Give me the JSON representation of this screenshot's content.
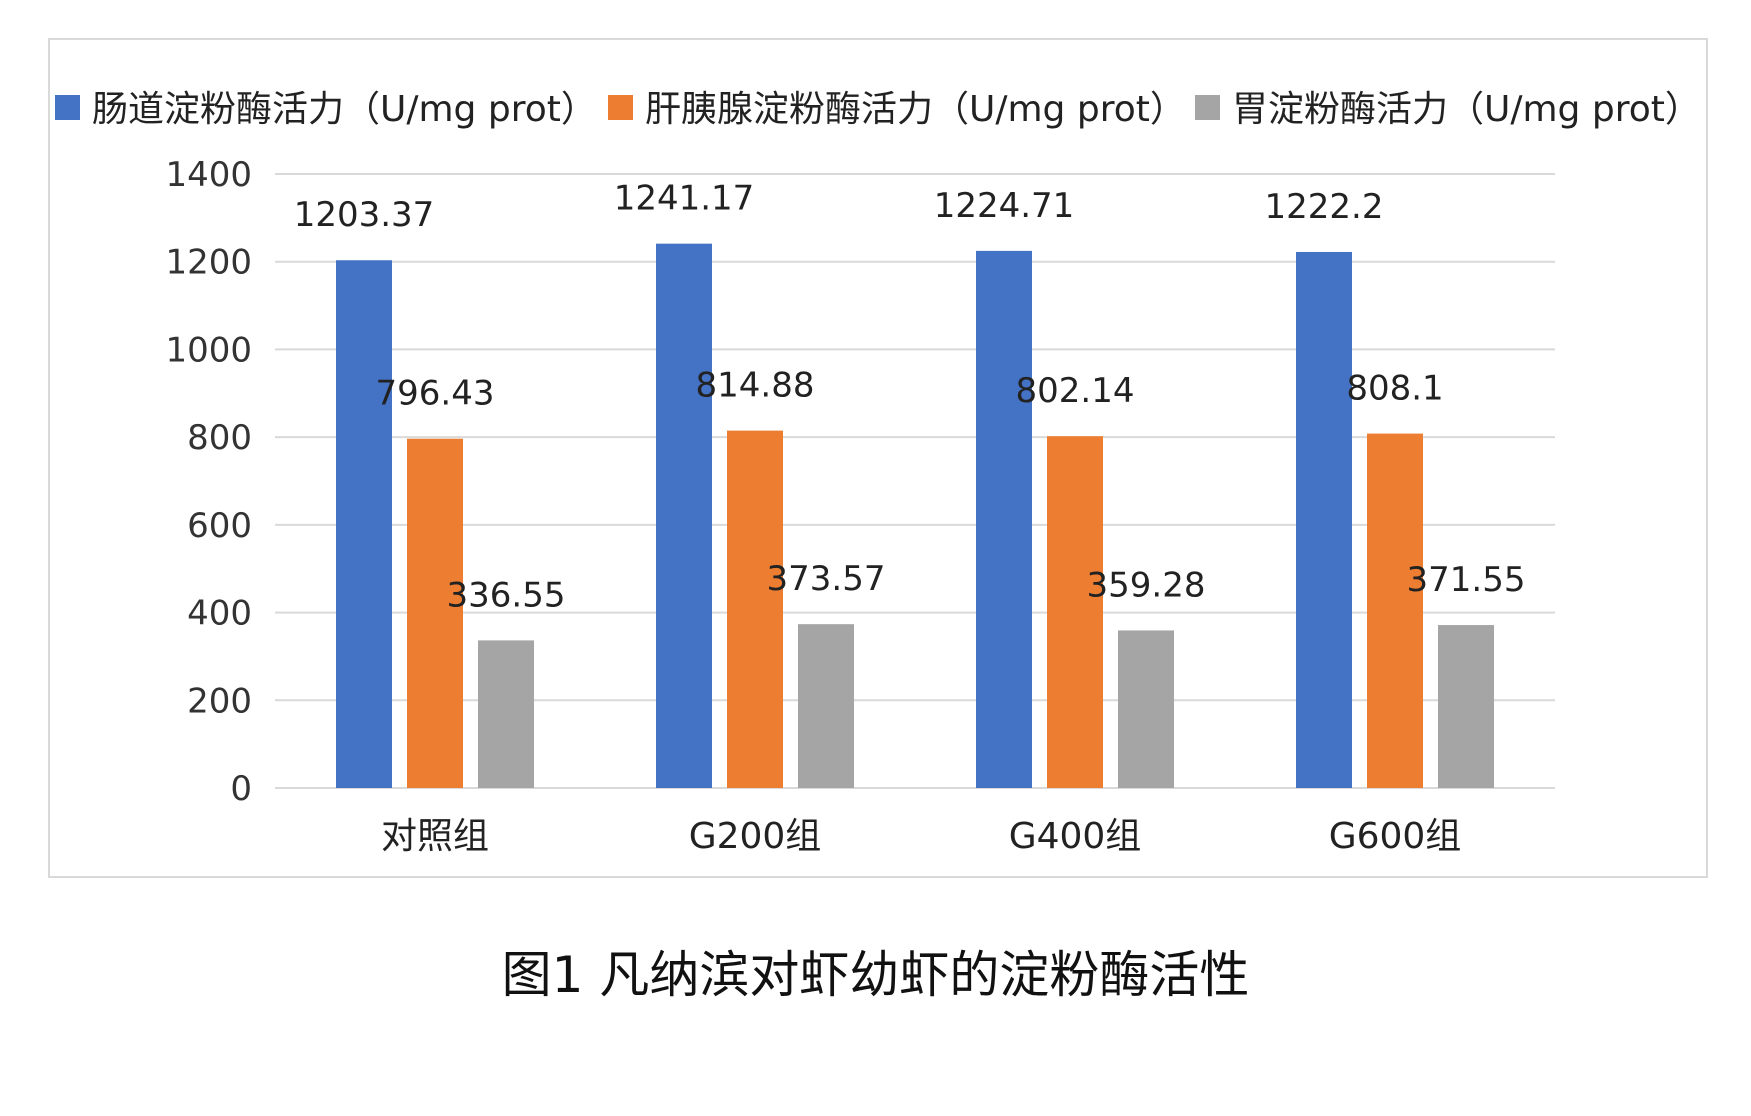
{
  "chart_data": {
    "type": "bar",
    "title": "",
    "xlabel": "",
    "ylabel": "",
    "categories": [
      "对照组",
      "G200组",
      "G400组",
      "G600组"
    ],
    "series": [
      {
        "name": "肠道淀粉酶活力（U/mg prot）",
        "color": "#4472C4",
        "values": [
          1203.37,
          1241.17,
          1224.71,
          1222.2
        ]
      },
      {
        "name": "肝胰腺淀粉酶活力（U/mg prot）",
        "color": "#ED7D31",
        "values": [
          796.43,
          814.88,
          802.14,
          808.1
        ]
      },
      {
        "name": "胃淀粉酶活力（U/mg prot）",
        "color": "#A5A5A5",
        "values": [
          336.55,
          373.57,
          359.28,
          371.55
        ]
      }
    ],
    "ylim": [
      0,
      1400
    ],
    "yticks": [
      0,
      200,
      400,
      600,
      800,
      1000,
      1200,
      1400
    ],
    "grid": true,
    "legend_position": "top"
  },
  "caption": "图1 凡纳滨对虾幼虾的淀粉酶活性"
}
